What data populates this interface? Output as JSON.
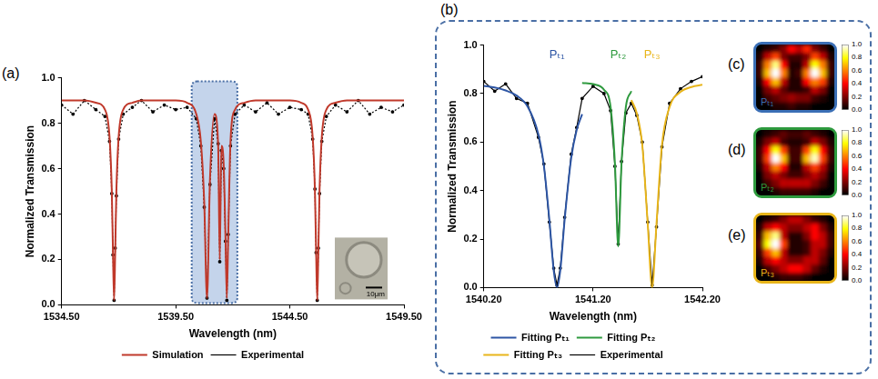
{
  "chart_data": [
    {
      "type": "line",
      "panel": "(a)",
      "x_label": "Wavelength (nm)",
      "y_label": "Normalized Transmission",
      "x": [
        1534.5,
        1535.0,
        1535.5,
        1536.0,
        1536.4,
        1536.6,
        1536.7,
        1536.75,
        1536.8,
        1536.85,
        1536.9,
        1537.0,
        1537.2,
        1537.6,
        1538.0,
        1538.5,
        1539.0,
        1539.5,
        1540.0,
        1540.4,
        1540.6,
        1540.75,
        1540.87,
        1541.0,
        1541.2,
        1541.36,
        1541.43,
        1541.5,
        1541.6,
        1541.68,
        1541.74,
        1541.8,
        1541.9,
        1542.1,
        1542.5,
        1543.0,
        1543.5,
        1544.0,
        1544.5,
        1545.0,
        1545.3,
        1545.5,
        1545.6,
        1545.65,
        1545.7,
        1545.75,
        1545.8,
        1545.9,
        1546.1,
        1546.5,
        1547.0,
        1547.5,
        1548.0,
        1548.5,
        1549.0,
        1549.5
      ],
      "series": [
        {
          "name": "Experimental",
          "color": "#000000",
          "marker": "circle",
          "line_style": "dotted",
          "values": [
            0.88,
            0.84,
            0.9,
            0.86,
            0.83,
            0.72,
            0.49,
            0.22,
            0.02,
            0.25,
            0.48,
            0.73,
            0.84,
            0.87,
            0.9,
            0.85,
            0.88,
            0.86,
            0.87,
            0.82,
            0.7,
            0.43,
            0.03,
            0.53,
            0.82,
            0.71,
            0.19,
            0.68,
            0.6,
            0.28,
            0.02,
            0.31,
            0.7,
            0.84,
            0.88,
            0.85,
            0.89,
            0.84,
            0.87,
            0.86,
            0.84,
            0.73,
            0.51,
            0.23,
            0.02,
            0.25,
            0.49,
            0.72,
            0.83,
            0.88,
            0.85,
            0.9,
            0.84,
            0.87,
            0.85,
            0.88
          ]
        },
        {
          "name": "Simulation",
          "color": "#c0392b",
          "line_style": "solid",
          "values": [
            0.9,
            0.9,
            0.9,
            0.89,
            0.86,
            0.74,
            0.5,
            0.24,
            0.02,
            0.24,
            0.5,
            0.74,
            0.86,
            0.89,
            0.9,
            0.9,
            0.9,
            0.9,
            0.89,
            0.84,
            0.72,
            0.45,
            0.03,
            0.55,
            0.84,
            0.7,
            0.2,
            0.7,
            0.62,
            0.3,
            0.03,
            0.3,
            0.72,
            0.86,
            0.89,
            0.9,
            0.9,
            0.9,
            0.9,
            0.89,
            0.86,
            0.74,
            0.5,
            0.24,
            0.02,
            0.24,
            0.5,
            0.74,
            0.86,
            0.89,
            0.9,
            0.9,
            0.9,
            0.9,
            0.9,
            0.9
          ]
        }
      ],
      "xlim": [
        1534.5,
        1549.5
      ],
      "xticks": [
        {
          "value": 1534.5,
          "label": "1534.50"
        },
        {
          "value": 1539.5,
          "label": "1539.50"
        },
        {
          "value": 1544.5,
          "label": "1544.50"
        },
        {
          "value": 1549.5,
          "label": "1549.50"
        }
      ],
      "ylim": [
        0,
        1
      ],
      "yticks": [
        {
          "value": 0,
          "label": "0.0"
        },
        0.2,
        0.4,
        0.6,
        0.8,
        {
          "value": 1,
          "label": "1.0"
        }
      ],
      "highlight_x": [
        1540.2,
        1542.2
      ],
      "inset_label": "10μm",
      "grid": false,
      "legend": "bottom"
    },
    {
      "type": "line",
      "panel": "(b)",
      "x_label": "Wavelength (nm)",
      "y_label": "Normalized Transmission",
      "x": [
        1540.2,
        1540.3,
        1540.4,
        1540.5,
        1540.6,
        1540.7,
        1540.75,
        1540.8,
        1540.84,
        1540.87,
        1540.9,
        1540.94,
        1541.0,
        1541.05,
        1541.1,
        1541.2,
        1541.3,
        1541.36,
        1541.4,
        1541.43,
        1541.46,
        1541.5,
        1541.55,
        1541.6,
        1541.65,
        1541.7,
        1541.74,
        1541.78,
        1541.83,
        1541.9,
        1542.0,
        1542.1,
        1542.2
      ],
      "series": [
        {
          "name": "Experimental",
          "color": "#000000",
          "marker": "circle",
          "line_style": "solid",
          "values": [
            0.85,
            0.81,
            0.84,
            0.78,
            0.76,
            0.62,
            0.51,
            0.27,
            0.08,
            0.01,
            0.08,
            0.29,
            0.55,
            0.66,
            0.78,
            0.83,
            0.8,
            0.73,
            0.5,
            0.18,
            0.52,
            0.72,
            0.76,
            0.71,
            0.6,
            0.27,
            0.01,
            0.25,
            0.58,
            0.76,
            0.82,
            0.85,
            0.87
          ]
        },
        {
          "name": "Fitting Pₜ₁",
          "label": "Pₜ₁",
          "color": "#2d55a4",
          "line_style": "solid",
          "values": [
            0.832,
            0.825,
            0.813,
            0.792,
            0.747,
            0.631,
            0.502,
            0.28,
            0.07,
            0.0,
            0.07,
            0.28,
            0.534,
            0.65,
            0.715,
            null,
            null,
            null,
            null,
            null,
            null,
            null,
            null,
            null,
            null,
            null,
            null,
            null,
            null,
            null,
            null,
            null,
            null
          ]
        },
        {
          "name": "Fitting Pₜ₂",
          "label": "Pₜ₂",
          "color": "#2e9a3e",
          "line_style": "solid",
          "values": [
            null,
            null,
            null,
            null,
            null,
            null,
            null,
            null,
            null,
            null,
            null,
            null,
            null,
            null,
            0.844,
            0.839,
            0.816,
            0.745,
            0.51,
            0.17,
            0.51,
            0.745,
            0.81,
            null,
            null,
            null,
            null,
            null,
            null,
            null,
            null,
            null,
            null
          ]
        },
        {
          "name": "Fitting Pₜ₃",
          "label": "Pₜ₃",
          "color": "#e8b51a",
          "line_style": "solid",
          "values": [
            null,
            null,
            null,
            null,
            null,
            null,
            null,
            null,
            null,
            null,
            null,
            null,
            null,
            null,
            null,
            null,
            null,
            null,
            null,
            null,
            null,
            null,
            0.773,
            0.718,
            0.588,
            0.262,
            0.0,
            0.262,
            0.588,
            0.745,
            0.807,
            0.827,
            0.836
          ]
        }
      ],
      "xlim": [
        1540.2,
        1542.2
      ],
      "xticks": [
        {
          "value": 1540.2,
          "label": "1540.20"
        },
        {
          "value": 1541.2,
          "label": "1541.20"
        },
        {
          "value": 1542.2,
          "label": "1542.20"
        }
      ],
      "ylim": [
        0,
        1
      ],
      "yticks": [
        {
          "value": 0,
          "label": "0.0"
        },
        0.2,
        0.4,
        0.6,
        0.8,
        {
          "value": 1,
          "label": "1.0"
        }
      ],
      "grid": false,
      "legend": "bottom"
    },
    {
      "type": "heatmap",
      "panel": "(c)",
      "title": "Pₜ₁",
      "color": "#3b6fb6",
      "cells": [
        [
          0.0,
          0.05,
          0.1,
          0.2,
          0.4,
          0.3,
          0.45,
          0.2,
          0.1,
          0.0
        ],
        [
          0.05,
          0.3,
          0.5,
          0.2,
          0.1,
          0.1,
          0.2,
          0.5,
          0.3,
          0.05
        ],
        [
          0.1,
          0.6,
          0.9,
          0.4,
          0.05,
          0.05,
          0.3,
          0.8,
          0.6,
          0.1
        ],
        [
          0.1,
          0.7,
          1.0,
          0.6,
          0.05,
          0.1,
          0.6,
          1.0,
          0.7,
          0.1
        ],
        [
          0.05,
          0.4,
          0.7,
          0.3,
          0.05,
          0.05,
          0.4,
          0.6,
          0.5,
          0.05
        ],
        [
          0.0,
          0.2,
          0.3,
          0.15,
          0.05,
          0.05,
          0.1,
          0.3,
          0.2,
          0.0
        ],
        [
          0.0,
          0.1,
          0.15,
          0.2,
          0.25,
          0.2,
          0.2,
          0.1,
          0.05,
          0.0
        ],
        [
          0.0,
          0.0,
          0.05,
          0.05,
          0.1,
          0.05,
          0.05,
          0.0,
          0.0,
          0.0
        ]
      ],
      "colorbar": {
        "range": [
          0,
          1
        ],
        "ticks": [
          {
            "value": 0,
            "label": "0.0"
          },
          0.2,
          0.4,
          0.6,
          0.8,
          {
            "value": 1,
            "label": "1.0"
          }
        ]
      }
    },
    {
      "type": "heatmap",
      "panel": "(d)",
      "title": "Pₜ₂",
      "color": "#2e9a3e",
      "cells": [
        [
          0.0,
          0.05,
          0.1,
          0.15,
          0.1,
          0.1,
          0.15,
          0.1,
          0.05,
          0.0
        ],
        [
          0.05,
          0.2,
          0.3,
          0.1,
          0.05,
          0.05,
          0.1,
          0.3,
          0.2,
          0.05
        ],
        [
          0.1,
          0.4,
          0.8,
          0.5,
          0.1,
          0.1,
          0.5,
          0.8,
          0.4,
          0.1
        ],
        [
          0.1,
          0.5,
          1.0,
          0.7,
          0.1,
          0.1,
          0.7,
          0.95,
          0.5,
          0.1
        ],
        [
          0.05,
          0.3,
          0.6,
          0.4,
          0.05,
          0.05,
          0.3,
          0.5,
          0.3,
          0.05
        ],
        [
          0.0,
          0.2,
          0.3,
          0.2,
          0.1,
          0.1,
          0.2,
          0.3,
          0.2,
          0.0
        ],
        [
          0.0,
          0.1,
          0.2,
          0.3,
          0.3,
          0.3,
          0.3,
          0.2,
          0.1,
          0.0
        ],
        [
          0.0,
          0.0,
          0.05,
          0.1,
          0.1,
          0.1,
          0.1,
          0.05,
          0.0,
          0.0
        ]
      ],
      "colorbar": {
        "range": [
          0,
          1
        ],
        "ticks": [
          {
            "value": 0,
            "label": "0.0"
          },
          0.2,
          0.4,
          0.6,
          0.8,
          {
            "value": 1,
            "label": "1.0"
          }
        ]
      }
    },
    {
      "type": "heatmap",
      "panel": "(e)",
      "title": "Pₜ₃",
      "color": "#e8b51a",
      "cells": [
        [
          0.0,
          0.05,
          0.1,
          0.2,
          0.3,
          0.3,
          0.2,
          0.1,
          0.05,
          0.0
        ],
        [
          0.05,
          0.3,
          0.4,
          0.3,
          0.2,
          0.2,
          0.3,
          0.4,
          0.2,
          0.05
        ],
        [
          0.1,
          0.7,
          0.9,
          0.3,
          0.05,
          0.05,
          0.2,
          0.4,
          0.3,
          0.1
        ],
        [
          0.15,
          0.8,
          1.0,
          0.5,
          0.05,
          0.05,
          0.1,
          0.3,
          0.3,
          0.1
        ],
        [
          0.1,
          0.5,
          0.7,
          0.3,
          0.05,
          0.05,
          0.1,
          0.3,
          0.2,
          0.05
        ],
        [
          0.05,
          0.3,
          0.4,
          0.3,
          0.2,
          0.2,
          0.3,
          0.3,
          0.15,
          0.0
        ],
        [
          0.0,
          0.1,
          0.2,
          0.3,
          0.4,
          0.4,
          0.3,
          0.15,
          0.05,
          0.0
        ],
        [
          0.0,
          0.0,
          0.05,
          0.1,
          0.1,
          0.1,
          0.05,
          0.0,
          0.0,
          0.0
        ]
      ],
      "colorbar": {
        "range": [
          0,
          1
        ],
        "ticks": [
          {
            "value": 0,
            "label": "0.0"
          },
          0.2,
          0.4,
          0.6,
          0.8,
          {
            "value": 1,
            "label": "1.0"
          }
        ]
      }
    }
  ]
}
